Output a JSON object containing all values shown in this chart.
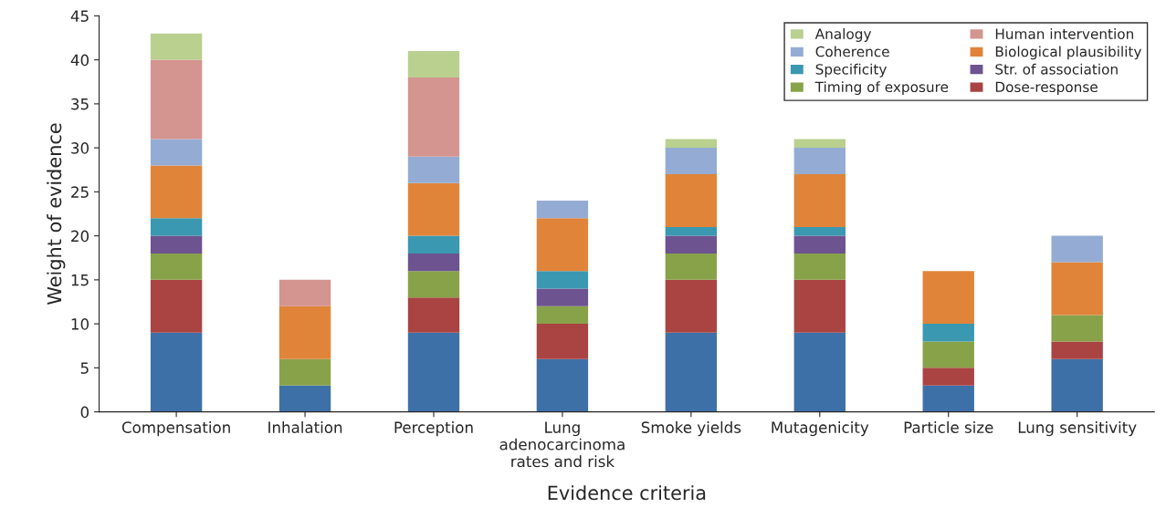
{
  "chart_data": {
    "type": "bar",
    "stacked": true,
    "xlabel": "Evidence criteria",
    "ylabel": "Weight of evidence",
    "categories": [
      "Compensation",
      "Inhalation",
      "Perception",
      "Lung\nadenocarcinoma\nrates and risk",
      "Smoke yields",
      "Mutagenicity",
      "Particle size",
      "Lung sensitivity"
    ],
    "series": [
      {
        "color": "#3e70a8",
        "values": [
          9,
          3,
          9,
          6,
          9,
          9,
          3,
          6
        ]
      },
      {
        "name": "Dose-response",
        "color": "#a94442",
        "values": [
          6,
          0,
          4,
          4,
          6,
          6,
          2,
          2
        ]
      },
      {
        "name": "Timing of exposure",
        "color": "#88a24a",
        "values": [
          3,
          3,
          3,
          2,
          3,
          3,
          3,
          3
        ]
      },
      {
        "name": "Str. of association",
        "color": "#6d5390",
        "values": [
          2,
          0,
          2,
          2,
          2,
          2,
          0,
          0
        ]
      },
      {
        "name": "Specificity",
        "color": "#3a98b0",
        "values": [
          2,
          0,
          2,
          2,
          1,
          1,
          2,
          0
        ]
      },
      {
        "name": "Biological plausibility",
        "color": "#e0843a",
        "values": [
          6,
          6,
          6,
          6,
          6,
          6,
          6,
          6
        ]
      },
      {
        "name": "Coherence",
        "color": "#94acd4",
        "values": [
          3,
          0,
          3,
          2,
          3,
          3,
          0,
          3
        ]
      },
      {
        "name": "Human intervention",
        "color": "#d4948f",
        "values": [
          9,
          3,
          9,
          0,
          0,
          0,
          0,
          0
        ]
      },
      {
        "name": "Analogy",
        "color": "#b9d08f",
        "values": [
          3,
          0,
          3,
          0,
          1,
          1,
          0,
          0
        ]
      }
    ],
    "ylim": [
      0,
      45
    ],
    "yticks": [
      0,
      5,
      10,
      15,
      20,
      25,
      30,
      35,
      40,
      45
    ],
    "grid": false,
    "legend": "top right"
  }
}
